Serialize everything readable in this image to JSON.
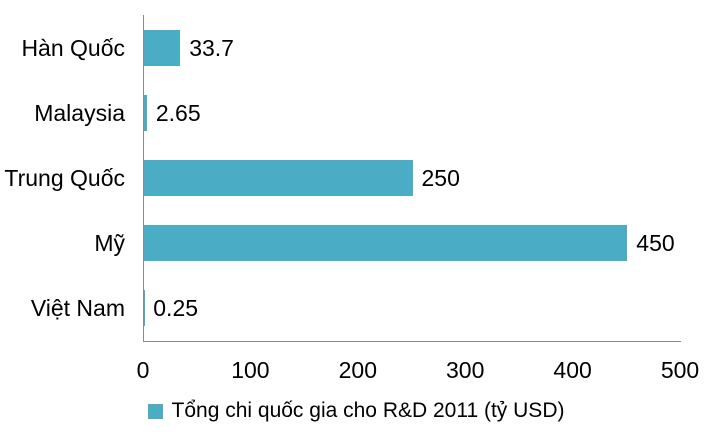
{
  "chart_data": {
    "type": "bar",
    "orientation": "horizontal",
    "title": "",
    "categories": [
      "Hàn Quốc",
      "Malaysia",
      "Trung Quốc",
      "Mỹ",
      "Việt Nam"
    ],
    "series": [
      {
        "name": "Tổng chi quốc gia cho R&D 2011 (tỷ USD)",
        "values": [
          33.7,
          2.65,
          250,
          450,
          0.25
        ],
        "value_labels": [
          "33.7",
          "2.65",
          "250",
          "450",
          "0.25"
        ]
      }
    ],
    "xlabel": "",
    "ylabel": "",
    "xlim": [
      0,
      500
    ],
    "x_ticks": [
      0,
      100,
      200,
      300,
      400,
      500
    ],
    "grid": false,
    "data_labels": true,
    "legend_position": "bottom",
    "bar_color": "#4BACC6",
    "axis_color": "#8C8C8C",
    "text_color": "#000000",
    "background_color": "#FFFFFF"
  },
  "legend": {
    "label": "Tổng chi quốc gia cho R&D 2011 (tỷ USD)"
  }
}
